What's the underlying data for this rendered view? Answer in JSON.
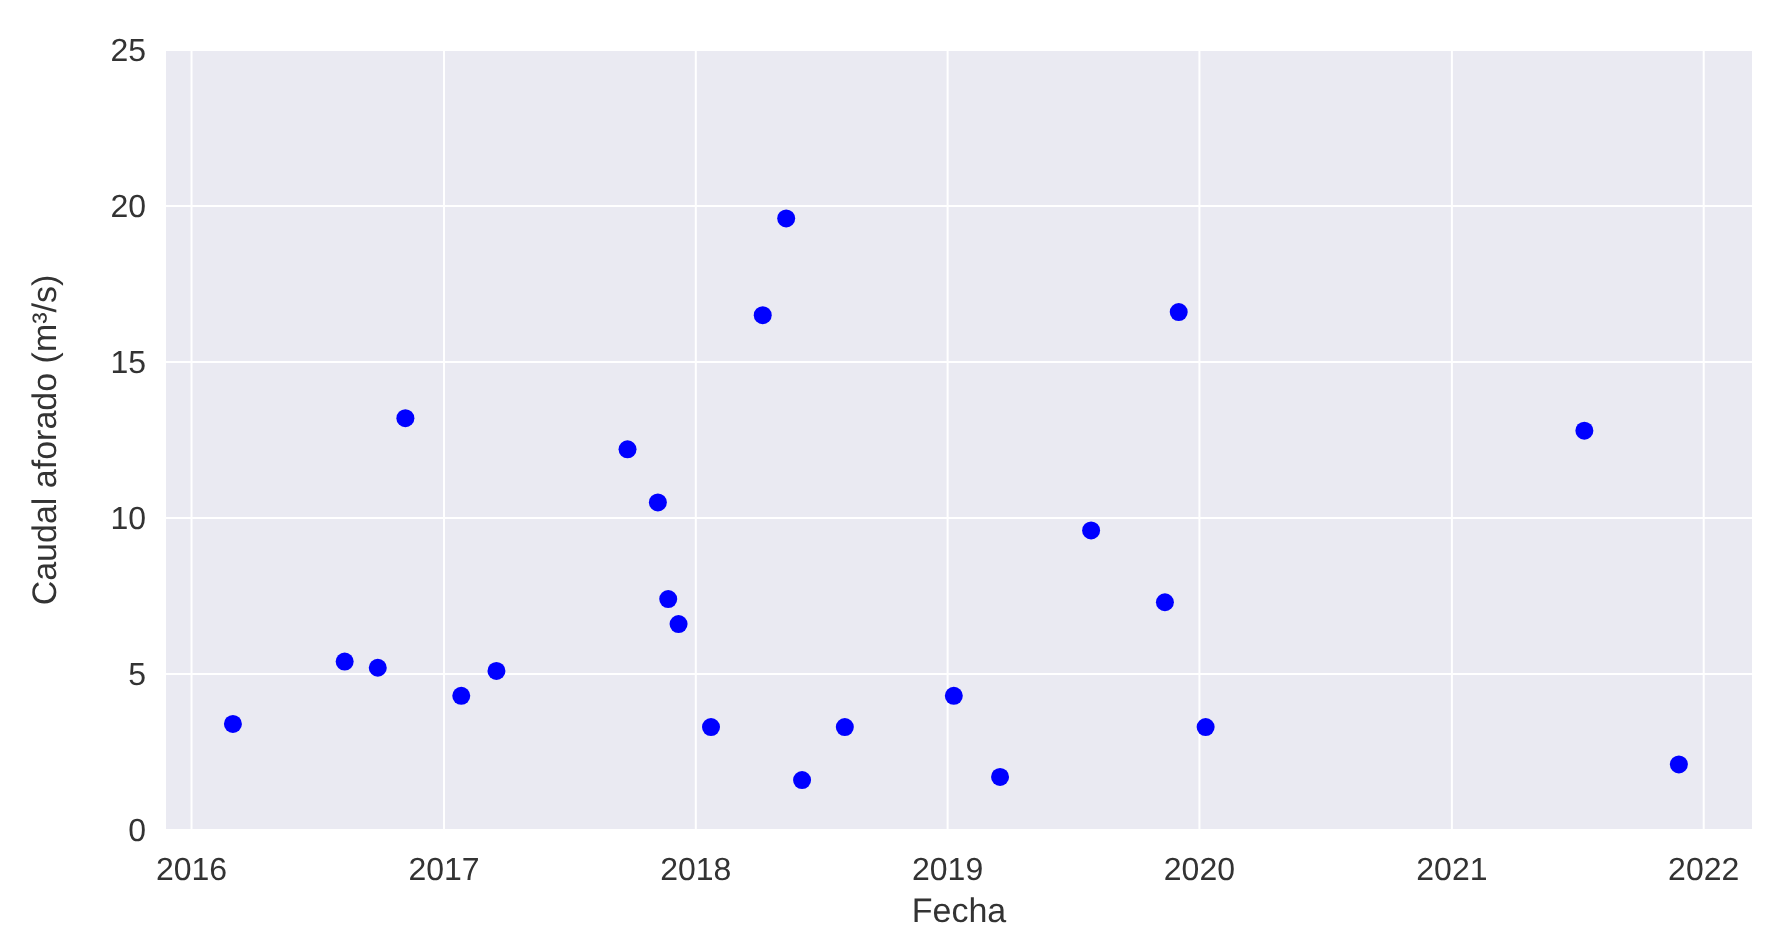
{
  "chart_data": {
    "type": "scatter",
    "xlabel": "Fecha",
    "ylabel": "Caudal aforado (m³/s)",
    "xlim": [
      "2015-11-25",
      "2022-03-12"
    ],
    "xticks": [
      "2016",
      "2017",
      "2018",
      "2019",
      "2020",
      "2021",
      "2022"
    ],
    "ylim": [
      0,
      25
    ],
    "yticks": [
      0,
      5,
      10,
      15,
      20,
      25
    ],
    "grid": true,
    "marker": "circle",
    "series": [
      {
        "color": "#0000ff",
        "x": [
          "2016-03-01",
          "2016-08-10",
          "2016-09-27",
          "2016-11-06",
          "2017-01-26",
          "2017-03-18",
          "2017-09-24",
          "2017-11-07",
          "2017-11-22",
          "2017-12-07",
          "2018-01-23",
          "2018-04-08",
          "2018-05-12",
          "2018-06-04",
          "2018-08-05",
          "2019-01-10",
          "2019-03-18",
          "2019-07-28",
          "2019-11-12",
          "2019-12-02",
          "2020-01-10",
          "2021-07-12",
          "2021-11-26"
        ],
        "values": [
          3.4,
          5.4,
          5.2,
          13.2,
          4.3,
          5.1,
          12.2,
          10.5,
          7.4,
          6.6,
          3.3,
          16.5,
          19.6,
          1.6,
          3.3,
          4.3,
          1.7,
          9.6,
          7.3,
          16.6,
          3.3,
          12.8,
          2.1
        ]
      }
    ]
  }
}
